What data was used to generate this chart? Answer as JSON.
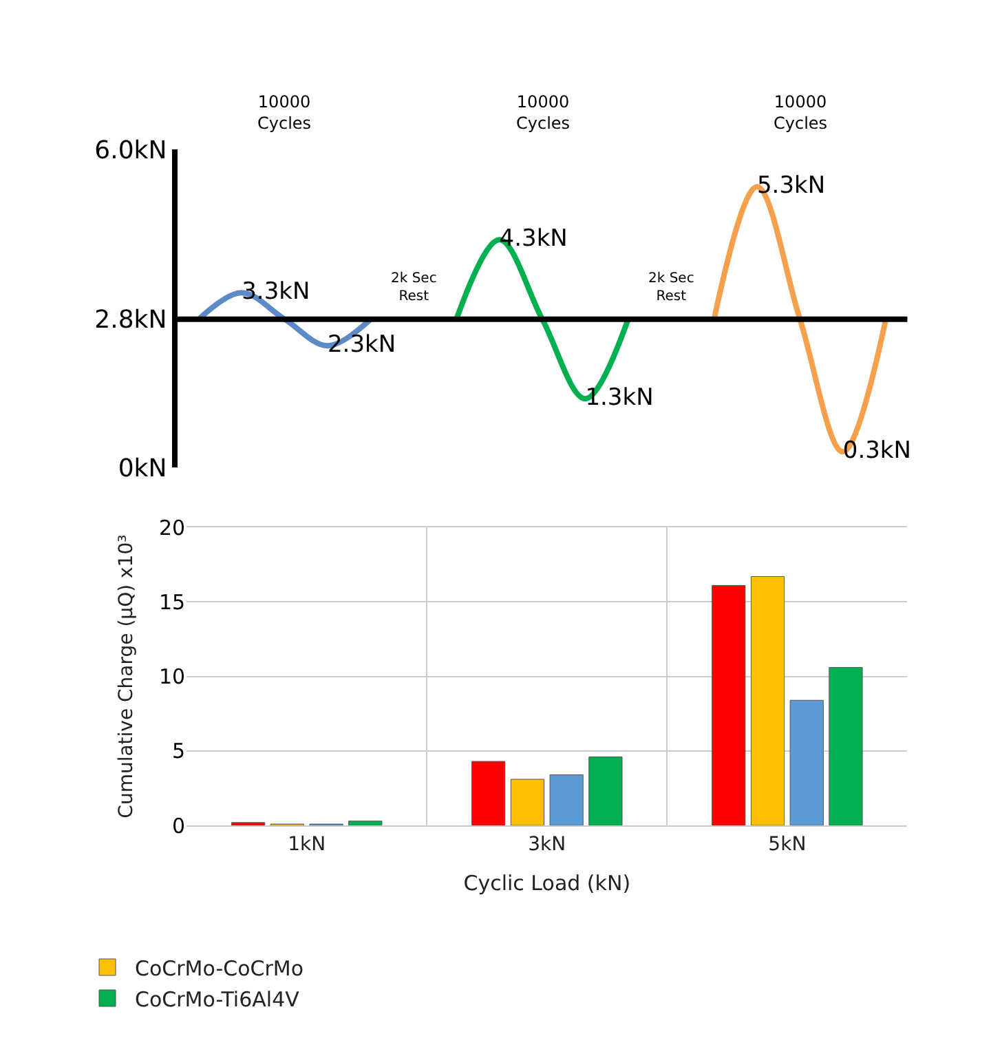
{
  "chart_data": [
    {
      "type": "line",
      "categories": [
        null,
        null,
        null,
        null,
        null,
        null,
        null,
        null,
        null,
        null,
        null,
        null,
        null,
        null,
        null,
        null,
        null
      ],
      "series": [
        {
          "color": "#5b8ac6",
          "values": [
            2.8,
            3.3,
            2.8,
            2.3,
            2.8,
            null,
            null,
            null,
            null,
            null,
            null,
            null,
            null,
            null,
            null,
            null,
            null
          ],
          "value_labels": [
            null,
            "3.3kN",
            null,
            "2.3kN",
            null,
            null,
            null,
            null,
            null,
            null,
            null,
            null,
            null,
            null,
            null,
            null,
            null
          ]
        },
        {
          "color": "#00b050",
          "values": [
            null,
            null,
            null,
            null,
            null,
            null,
            2.8,
            4.3,
            2.8,
            1.3,
            2.8,
            null,
            null,
            null,
            null,
            null,
            null
          ],
          "value_labels": [
            null,
            null,
            null,
            null,
            null,
            null,
            null,
            "4.3kN",
            null,
            "1.3kN",
            null,
            null,
            null,
            null,
            null,
            null,
            null
          ]
        },
        {
          "color": "#f4a04c",
          "values": [
            null,
            null,
            null,
            null,
            null,
            null,
            null,
            null,
            null,
            null,
            null,
            null,
            2.8,
            5.3,
            2.8,
            0.3,
            2.8
          ],
          "value_labels": [
            null,
            null,
            null,
            null,
            null,
            null,
            null,
            null,
            null,
            null,
            null,
            null,
            null,
            "5.3kN",
            null,
            "0.3kN",
            null
          ]
        }
      ],
      "ylim": [
        0,
        6.0
      ],
      "yticks": [
        {
          "value": 0,
          "label": "0kN"
        },
        {
          "value": 2.8,
          "label": "2.8kN"
        },
        {
          "value": 6.0,
          "label": "6.0kN"
        }
      ],
      "tick_labels": "y",
      "grid": false,
      "legend": false,
      "marker": "none",
      "line_style": "solid",
      "ref_lines": [
        {
          "axis": "y",
          "value": 2.8,
          "color": "#000000"
        }
      ],
      "annotations": [
        "10000\nCycles",
        "10000\nCycles",
        "10000\nCycles",
        "2k Sec\nRest",
        "2k Sec\nRest"
      ]
    },
    {
      "type": "bar",
      "categories": [
        "1kN",
        "3kN",
        "5kN"
      ],
      "series": [
        {
          "name": null,
          "color": "#ff0000",
          "values": [
            0.2,
            4.3,
            16.1
          ]
        },
        {
          "name": "CoCrMo-CoCrMo",
          "color": "#ffc000",
          "values": [
            0.1,
            3.1,
            16.7
          ]
        },
        {
          "name": null,
          "color": "#5b9bd5",
          "values": [
            0.1,
            3.4,
            8.4
          ]
        },
        {
          "name": "CoCrMo-Ti6Al4V",
          "color": "#00b050",
          "values": [
            0.3,
            4.6,
            10.6
          ]
        }
      ],
      "ylim": [
        0,
        20
      ],
      "yticks": [
        0,
        5,
        10,
        15,
        20
      ],
      "grid": true,
      "legend": "bottom",
      "xlabel": "Cyclic Load (kN)",
      "ylabel": "Cumulative Charge (µQ) x10³"
    }
  ]
}
